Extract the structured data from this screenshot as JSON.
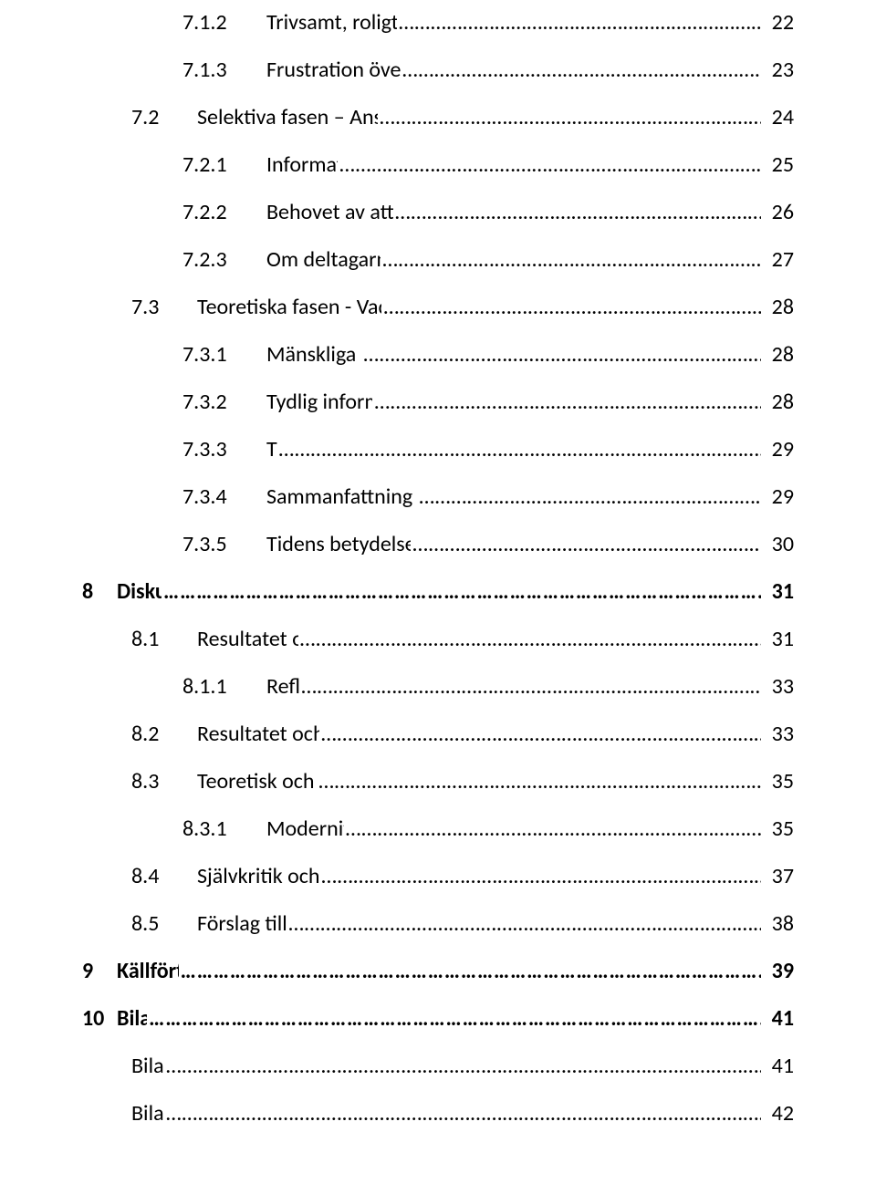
{
  "typography": {
    "font_family": "Calibri",
    "base_fontsize_pt": 18,
    "line_spacing": 1.9,
    "text_color": "#000000",
    "background_color": "#ffffff"
  },
  "toc": [
    {
      "level": 3,
      "num": "7.1.2",
      "title": "Trivsamt, roligt och utvecklande att arbeta på AMA",
      "page": "22",
      "bold": false
    },
    {
      "level": 3,
      "num": "7.1.3",
      "title": "Frustration över tidsbrist och oklara ansvarsområden",
      "page": "23",
      "bold": false
    },
    {
      "level": 2,
      "num": "7.2",
      "title": "Selektiva fasen – Anställdas Kunskap och tankar om OCN- metoden",
      "page": "24",
      "bold": false
    },
    {
      "level": 3,
      "num": "7.2.1",
      "title": "Information gör skillnad",
      "page": "25",
      "bold": false
    },
    {
      "level": 3,
      "num": "7.2.2",
      "title": "Behovet av att validera deltagarnas kompetenser",
      "page": "26",
      "bold": false
    },
    {
      "level": 3,
      "num": "7.2.3",
      "title": "Om deltagarna lättare får arbete med OCN",
      "page": "27",
      "bold": false
    },
    {
      "level": 2,
      "num": "7.3",
      "title": "Teoretiska fasen - Vad krävs för en lyckad och hållbar implementering",
      "page": "28",
      "bold": false
    },
    {
      "level": 3,
      "num": "7.3.1",
      "title": "Mänskliga resurser och utbildning",
      "page": "28",
      "bold": false
    },
    {
      "level": 3,
      "num": "7.3.2",
      "title": "Tydlig information och Kommunikation",
      "page": "28",
      "bold": false
    },
    {
      "level": 3,
      "num": "7.3.3",
      "title": "Tid",
      "page": "29",
      "bold": false
    },
    {
      "level": 3,
      "num": "7.3.4",
      "title": "Sammanfattning av analys, resultat och den genererade teorin",
      "page": "29",
      "bold": false
    },
    {
      "level": 3,
      "num": "7.3.5",
      "title": "Tidens betydelse för en lyckad och hållbar implementering",
      "page": "30",
      "bold": false
    },
    {
      "level": 1,
      "num": "8",
      "title": "Diskussion",
      "page": "31",
      "bold": true
    },
    {
      "level": 2,
      "num": "8.1",
      "title": "Resultatet och frågeställningen",
      "page": "31",
      "bold": false
    },
    {
      "level": 3,
      "num": "8.1.1",
      "title": "Reflektion",
      "page": "33",
      "bold": false
    },
    {
      "level": 2,
      "num": "8.2",
      "title": "Resultatet och den tidigare forskningen",
      "page": "33",
      "bold": false
    },
    {
      "level": 2,
      "num": "8.3",
      "title": "Teoretisk och begreppslig referensram",
      "page": "35",
      "bold": false
    },
    {
      "level": 3,
      "num": "8.3.1",
      "title": "Modernitetens reflexivitet",
      "page": "35",
      "bold": false
    },
    {
      "level": 2,
      "num": "8.4",
      "title": "Självkritik och metodens begränsningar",
      "page": "37",
      "bold": false
    },
    {
      "level": 2,
      "num": "8.5",
      "title": "Förslag till vidare forskning",
      "page": "38",
      "bold": false
    },
    {
      "level": 1,
      "num": "9",
      "title": "Källförteckning",
      "page": "39",
      "bold": true
    },
    {
      "level": 1,
      "num": "10",
      "title": "Bilagor",
      "page": "41",
      "bold": true
    },
    {
      "level": 2,
      "num": "",
      "title": "Bilaga 1",
      "page": "41",
      "bold": false
    },
    {
      "level": 2,
      "num": "",
      "title": "Bilaga 2",
      "page": "42",
      "bold": false
    }
  ]
}
